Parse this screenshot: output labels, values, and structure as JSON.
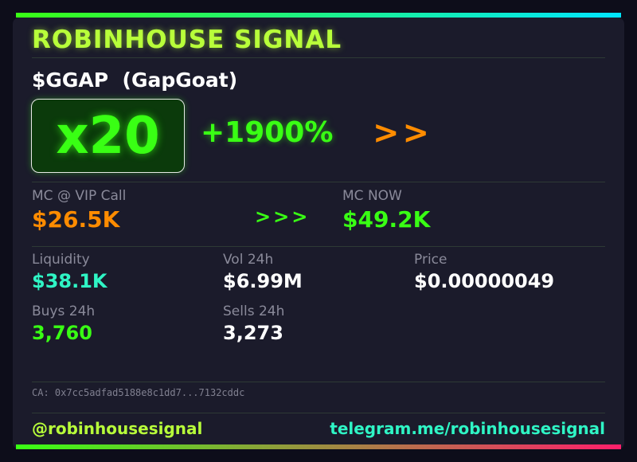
{
  "header": {
    "title": "ROBINHOUSE SIGNAL"
  },
  "token": {
    "symbol_line": "$GGAP  (GapGoat)"
  },
  "performance": {
    "multiplier": "x20",
    "percent_change": "+1900%",
    "arrows": ">>"
  },
  "market_cap": {
    "call_label": "MC @ VIP Call",
    "call_value": "$26.5K",
    "arrows": ">>>",
    "now_label": "MC NOW",
    "now_value": "$49.2K"
  },
  "stats": {
    "liquidity_label": "Liquidity",
    "liquidity_value": "$38.1K",
    "vol_label": "Vol 24h",
    "vol_value": "$6.99M",
    "price_label": "Price",
    "price_value": "$0.00000049",
    "buys_label": "Buys 24h",
    "buys_value": "3,760",
    "sells_label": "Sells 24h",
    "sells_value": "3,273"
  },
  "contract": {
    "text": "CA: 0x7cc5adfad5188e8c1dd7...7132cddc"
  },
  "footer": {
    "handle": "@robinhousesignal",
    "link": "telegram.me/robinhousesignal"
  },
  "colors": {
    "neon_green": "#39ff14",
    "lime": "#b8ff3a",
    "orange": "#ff8c00",
    "teal": "#2ff5c5",
    "card_bg": "#1b1b2b"
  }
}
